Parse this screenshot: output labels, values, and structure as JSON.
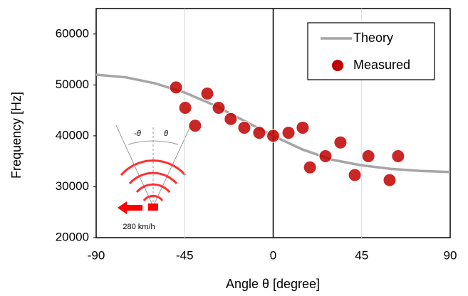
{
  "chart_data": {
    "type": "scatter",
    "x_label": "Angle θ [degree]",
    "y_label": "Frequency [Hz]",
    "xlim": [
      -90,
      90
    ],
    "xticks": [
      -90,
      -45,
      0,
      45,
      90
    ],
    "ylim": [
      20000,
      65000
    ],
    "yticks": [
      20000,
      30000,
      40000,
      50000,
      60000
    ],
    "grid": true,
    "legend": "upper right",
    "series": [
      {
        "name": "Theory",
        "type": "line",
        "color": "#a6a6a6",
        "x": [
          -90,
          -75,
          -60,
          -45,
          -30,
          -15,
          0,
          15,
          30,
          45,
          60,
          75,
          90
        ],
        "values": [
          52000,
          51500,
          50300,
          48500,
          46000,
          43000,
          40000,
          37300,
          35300,
          34200,
          33500,
          33100,
          32900
        ]
      },
      {
        "name": "Measured",
        "type": "scatter",
        "color": "#c00000",
        "x": [
          -49.4,
          -44.7,
          -39.7,
          -33.5,
          -27.7,
          -21.6,
          -14.7,
          -7.1,
          0,
          7.8,
          15,
          18.7,
          26.6,
          34.2,
          41.5,
          48.4,
          59.2,
          63.5
        ],
        "values": [
          49500,
          45500,
          42000,
          48300,
          45500,
          43300,
          41600,
          40600,
          40000,
          40600,
          41600,
          33800,
          36000,
          38700,
          32300,
          36000,
          31300,
          36000
        ]
      }
    ],
    "inset_labels": [
      "-θ",
      "θ",
      "280 km/h"
    ]
  }
}
